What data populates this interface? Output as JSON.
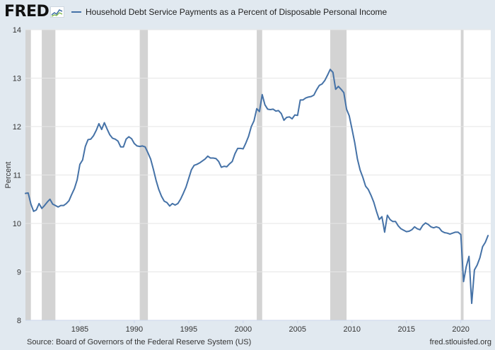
{
  "header": {
    "logo_text": "FRED",
    "logo_icon": "fred-sparkline-logo-icon"
  },
  "chart_data": {
    "type": "line",
    "title": "Household Debt Service Payments as a Percent of Disposable Personal Income",
    "xlabel": "",
    "ylabel": "Percent",
    "ylim": [
      8,
      14
    ],
    "xlim": [
      1980.0,
      2022.75
    ],
    "y_ticks": [
      8,
      9,
      10,
      11,
      12,
      13,
      14
    ],
    "x_ticks": [
      1985,
      1990,
      1995,
      2000,
      2005,
      2010,
      2015,
      2020
    ],
    "grid": "horizontal",
    "legend": "top-left",
    "colors": {
      "line": "#4572a7",
      "recession": "#d3d3d3",
      "plot_bg": "#ffffff",
      "page_bg": "#e1e9f0"
    },
    "recessions": [
      [
        1980.0,
        1980.5
      ],
      [
        1981.5,
        1982.75
      ],
      [
        1990.5,
        1991.25
      ],
      [
        2001.25,
        2001.75
      ],
      [
        2008.0,
        2009.5
      ],
      [
        2020.0,
        2020.25
      ]
    ],
    "series": [
      {
        "name": "Household Debt Service Payments as a Percent of Disposable Personal Income",
        "x": [
          1980.0,
          1980.25,
          1980.5,
          1980.75,
          1981.0,
          1981.25,
          1981.5,
          1981.75,
          1982.0,
          1982.25,
          1982.5,
          1982.75,
          1983.0,
          1983.25,
          1983.5,
          1983.75,
          1984.0,
          1984.25,
          1984.5,
          1984.75,
          1985.0,
          1985.25,
          1985.5,
          1985.75,
          1986.0,
          1986.25,
          1986.5,
          1986.75,
          1987.0,
          1987.25,
          1987.5,
          1987.75,
          1988.0,
          1988.25,
          1988.5,
          1988.75,
          1989.0,
          1989.25,
          1989.5,
          1989.75,
          1990.0,
          1990.25,
          1990.5,
          1990.75,
          1991.0,
          1991.25,
          1991.5,
          1991.75,
          1992.0,
          1992.25,
          1992.5,
          1992.75,
          1993.0,
          1993.25,
          1993.5,
          1993.75,
          1994.0,
          1994.25,
          1994.5,
          1994.75,
          1995.0,
          1995.25,
          1995.5,
          1995.75,
          1996.0,
          1996.25,
          1996.5,
          1996.75,
          1997.0,
          1997.25,
          1997.5,
          1997.75,
          1998.0,
          1998.25,
          1998.5,
          1998.75,
          1999.0,
          1999.25,
          1999.5,
          1999.75,
          2000.0,
          2000.25,
          2000.5,
          2000.75,
          2001.0,
          2001.25,
          2001.5,
          2001.75,
          2002.0,
          2002.25,
          2002.5,
          2002.75,
          2003.0,
          2003.25,
          2003.5,
          2003.75,
          2004.0,
          2004.25,
          2004.5,
          2004.75,
          2005.0,
          2005.25,
          2005.5,
          2005.75,
          2006.0,
          2006.25,
          2006.5,
          2006.75,
          2007.0,
          2007.25,
          2007.5,
          2007.75,
          2008.0,
          2008.25,
          2008.5,
          2008.75,
          2009.0,
          2009.25,
          2009.5,
          2009.75,
          2010.0,
          2010.25,
          2010.5,
          2010.75,
          2011.0,
          2011.25,
          2011.5,
          2011.75,
          2012.0,
          2012.25,
          2012.5,
          2012.75,
          2013.0,
          2013.25,
          2013.5,
          2013.75,
          2014.0,
          2014.25,
          2014.5,
          2014.75,
          2015.0,
          2015.25,
          2015.5,
          2015.75,
          2016.0,
          2016.25,
          2016.5,
          2016.75,
          2017.0,
          2017.25,
          2017.5,
          2017.75,
          2018.0,
          2018.25,
          2018.5,
          2018.75,
          2019.0,
          2019.25,
          2019.5,
          2019.75,
          2020.0,
          2020.25,
          2020.5,
          2020.75,
          2021.0,
          2021.25,
          2021.5,
          2021.75,
          2022.0,
          2022.25,
          2022.5
        ],
        "y": [
          10.62,
          10.63,
          10.4,
          10.25,
          10.28,
          10.41,
          10.31,
          10.37,
          10.44,
          10.5,
          10.4,
          10.37,
          10.34,
          10.37,
          10.37,
          10.41,
          10.47,
          10.6,
          10.72,
          10.9,
          11.22,
          11.31,
          11.59,
          11.73,
          11.74,
          11.81,
          11.92,
          12.06,
          11.94,
          12.08,
          11.95,
          11.83,
          11.76,
          11.74,
          11.7,
          11.58,
          11.58,
          11.74,
          11.79,
          11.75,
          11.65,
          11.6,
          11.59,
          11.6,
          11.58,
          11.46,
          11.33,
          11.12,
          10.89,
          10.7,
          10.56,
          10.46,
          10.43,
          10.36,
          10.41,
          10.38,
          10.41,
          10.5,
          10.62,
          10.75,
          10.93,
          11.11,
          11.2,
          11.22,
          11.25,
          11.29,
          11.33,
          11.39,
          11.35,
          11.35,
          11.34,
          11.28,
          11.16,
          11.18,
          11.17,
          11.23,
          11.28,
          11.44,
          11.55,
          11.55,
          11.54,
          11.66,
          11.8,
          12.0,
          12.12,
          12.37,
          12.31,
          12.66,
          12.45,
          12.36,
          12.35,
          12.36,
          12.32,
          12.33,
          12.27,
          12.13,
          12.19,
          12.2,
          12.16,
          12.24,
          12.23,
          12.55,
          12.55,
          12.59,
          12.61,
          12.62,
          12.65,
          12.76,
          12.85,
          12.88,
          12.95,
          13.06,
          13.18,
          13.12,
          12.77,
          12.83,
          12.77,
          12.7,
          12.36,
          12.22,
          11.95,
          11.67,
          11.33,
          11.1,
          10.95,
          10.77,
          10.7,
          10.58,
          10.44,
          10.25,
          10.08,
          10.14,
          9.82,
          10.17,
          10.08,
          10.04,
          10.04,
          9.95,
          9.89,
          9.86,
          9.83,
          9.84,
          9.87,
          9.93,
          9.89,
          9.87,
          9.96,
          10.01,
          9.98,
          9.93,
          9.91,
          9.93,
          9.91,
          9.84,
          9.81,
          9.8,
          9.78,
          9.8,
          9.82,
          9.82,
          9.77,
          8.8,
          9.11,
          9.32,
          8.35,
          9.04,
          9.14,
          9.29,
          9.52,
          9.61,
          9.75
        ]
      }
    ]
  },
  "footer": {
    "source": "Source: Board of Governors of the Federal Reserve System (US)",
    "url": "fred.stlouisfed.org"
  }
}
